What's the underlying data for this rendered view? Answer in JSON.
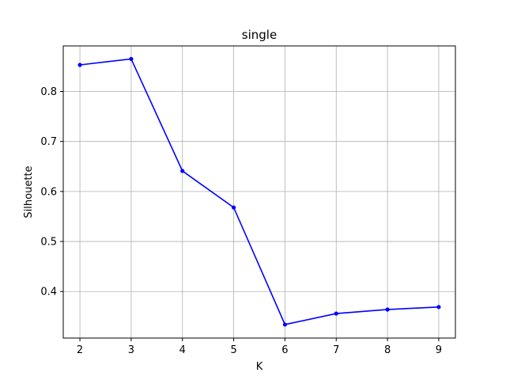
{
  "chart_data": {
    "type": "line",
    "title": "single",
    "xlabel": "K",
    "ylabel": "Silhouette",
    "x": [
      2,
      3,
      4,
      5,
      6,
      7,
      8,
      9
    ],
    "series": [
      {
        "values": [
          0.853,
          0.865,
          0.641,
          0.568,
          0.334,
          0.356,
          0.364,
          0.369
        ],
        "color": "#0000ff",
        "marker": "circle"
      }
    ],
    "xlim": [
      1.675,
      9.325
    ],
    "ylim": [
      0.307,
      0.891
    ],
    "xticks": [
      2,
      3,
      4,
      5,
      6,
      7,
      8,
      9
    ],
    "xtick_labels": [
      "2",
      "3",
      "4",
      "5",
      "6",
      "7",
      "8",
      "9"
    ],
    "yticks": [
      0.4,
      0.5,
      0.6,
      0.7,
      0.8
    ],
    "ytick_labels": [
      "0.4",
      "0.5",
      "0.6",
      "0.7",
      "0.8"
    ],
    "grid": true,
    "grid_color": "#b0b0b0",
    "legend": "none"
  }
}
